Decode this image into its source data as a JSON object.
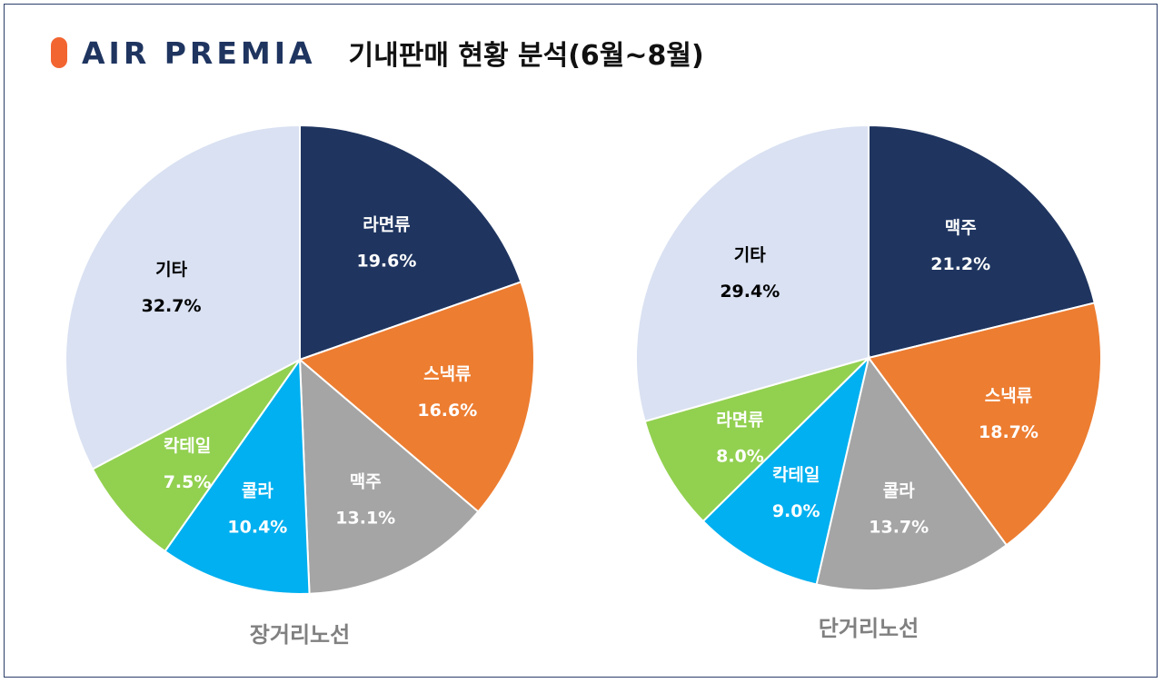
{
  "header": {
    "logo_text": "AIR PREMIA",
    "title": "기내판매 현황 분석(6월~8월)"
  },
  "colors": {
    "navy": "#1f3560",
    "orange": "#ed7d31",
    "gray": "#a5a5a5",
    "blue": "#00b0f0",
    "green": "#92d050",
    "light": "#d9e1f2"
  },
  "chart_data": [
    {
      "type": "pie",
      "title": "장거리노선",
      "slices": [
        {
          "label": "라면류",
          "value": 19.6,
          "display": "19.6%",
          "color": "#1f3560",
          "text_color": "#ffffff"
        },
        {
          "label": "스낵류",
          "value": 16.6,
          "display": "16.6%",
          "color": "#ed7d31",
          "text_color": "#ffffff"
        },
        {
          "label": "맥주",
          "value": 13.1,
          "display": "13.1%",
          "color": "#a5a5a5",
          "text_color": "#ffffff"
        },
        {
          "label": "콜라",
          "value": 10.4,
          "display": "10.4%",
          "color": "#00b0f0",
          "text_color": "#ffffff"
        },
        {
          "label": "칵테일",
          "value": 7.5,
          "display": "7.5%",
          "color": "#92d050",
          "text_color": "#ffffff"
        },
        {
          "label": "기타",
          "value": 32.7,
          "display": "32.7%",
          "color": "#d9e1f2",
          "text_color": "#000000"
        }
      ]
    },
    {
      "type": "pie",
      "title": "단거리노선",
      "slices": [
        {
          "label": "맥주",
          "value": 21.2,
          "display": "21.2%",
          "color": "#1f3560",
          "text_color": "#ffffff"
        },
        {
          "label": "스낵류",
          "value": 18.7,
          "display": "18.7%",
          "color": "#ed7d31",
          "text_color": "#ffffff"
        },
        {
          "label": "콜라",
          "value": 13.7,
          "display": "13.7%",
          "color": "#a5a5a5",
          "text_color": "#ffffff"
        },
        {
          "label": "칵테일",
          "value": 9.0,
          "display": "9.0%",
          "color": "#00b0f0",
          "text_color": "#ffffff"
        },
        {
          "label": "라면류",
          "value": 8.0,
          "display": "8.0%",
          "color": "#92d050",
          "text_color": "#ffffff"
        },
        {
          "label": "기타",
          "value": 29.4,
          "display": "29.4%",
          "color": "#d9e1f2",
          "text_color": "#000000"
        }
      ]
    }
  ]
}
